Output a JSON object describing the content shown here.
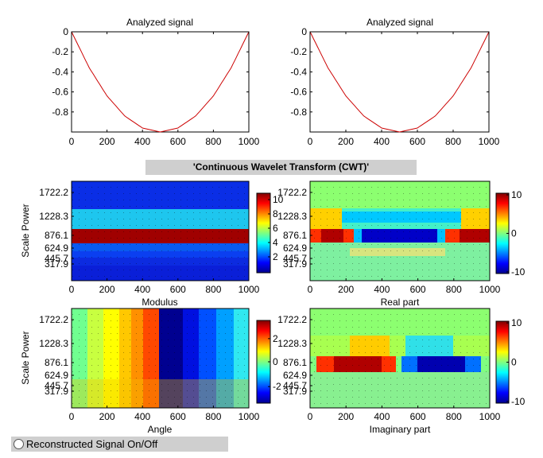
{
  "signal_plots": [
    {
      "title": "Analyzed signal"
    },
    {
      "title": "Analyzed signal"
    }
  ],
  "banner": {
    "label": "'Continuous Wavelet Transform (CWT)'"
  },
  "wavelet_panels": [
    {
      "title": "",
      "xlabel": "Modulus",
      "ylabel": "Scale Power"
    },
    {
      "title": "",
      "xlabel": "Real part",
      "ylabel": ""
    },
    {
      "title": "",
      "xlabel": "Angle",
      "ylabel": "Scale Power"
    },
    {
      "title": "",
      "xlabel": "Imaginary part",
      "ylabel": ""
    }
  ],
  "scale_ticks": [
    "1722.2",
    "1228.3",
    "876.1",
    "624.9",
    "445.7",
    "317.9"
  ],
  "x_ticks": [
    "0",
    "200",
    "400",
    "600",
    "800",
    "1000"
  ],
  "colorbars": [
    {
      "ticks": [
        "2",
        "4",
        "6",
        "8",
        "10"
      ]
    },
    {
      "ticks": [
        "10",
        "0",
        "-10"
      ]
    },
    {
      "ticks": [
        "2",
        "0",
        "-2"
      ]
    },
    {
      "ticks": [
        "10",
        "0",
        "-10"
      ]
    }
  ],
  "reconstructed_toggle": {
    "label": "Reconstructed Signal On/Off",
    "checked": false
  },
  "colors": {
    "signal_line": "#cc0000",
    "banner_bg": "#cfcfcf"
  },
  "chart_data": [
    {
      "type": "line",
      "title": "Analyzed signal",
      "xlabel": "",
      "ylabel": "",
      "xlim": [
        0,
        1000
      ],
      "ylim": [
        -1,
        0
      ],
      "x_ticks": [
        0,
        200,
        400,
        600,
        800,
        1000
      ],
      "y_ticks": [
        0,
        -0.2,
        -0.4,
        -0.6,
        -0.8
      ],
      "series": [
        {
          "x": [
            0,
            100,
            200,
            300,
            400,
            500,
            600,
            700,
            800,
            900,
            1000
          ],
          "y": [
            0,
            -0.36,
            -0.64,
            -0.84,
            -0.96,
            -1.0,
            -0.96,
            -0.84,
            -0.64,
            -0.36,
            0
          ]
        }
      ]
    },
    {
      "type": "line",
      "title": "Analyzed signal",
      "xlabel": "",
      "ylabel": "",
      "xlim": [
        0,
        1000
      ],
      "ylim": [
        -1,
        0
      ],
      "x_ticks": [
        0,
        200,
        400,
        600,
        800,
        1000
      ],
      "y_ticks": [
        0,
        -0.2,
        -0.4,
        -0.6,
        -0.8
      ],
      "series": [
        {
          "x": [
            0,
            100,
            200,
            300,
            400,
            500,
            600,
            700,
            800,
            900,
            1000
          ],
          "y": [
            0,
            -0.36,
            -0.64,
            -0.84,
            -0.96,
            -1.0,
            -0.96,
            -0.84,
            -0.64,
            -0.36,
            0
          ]
        }
      ]
    },
    {
      "type": "heatmap",
      "xlabel": "Modulus",
      "ylabel": "Scale Power",
      "xlim": [
        0,
        1000
      ],
      "colorbar": [
        1,
        11
      ]
    },
    {
      "type": "heatmap",
      "xlabel": "Real part",
      "xlim": [
        0,
        1000
      ],
      "colorbar": [
        -11,
        11
      ]
    },
    {
      "type": "heatmap",
      "xlabel": "Angle",
      "ylabel": "Scale Power",
      "xlim": [
        0,
        1000
      ],
      "colorbar": [
        -3.14,
        3.14
      ]
    },
    {
      "type": "heatmap",
      "xlabel": "Imaginary part",
      "xlim": [
        0,
        1000
      ],
      "colorbar": [
        -11,
        11
      ]
    }
  ]
}
